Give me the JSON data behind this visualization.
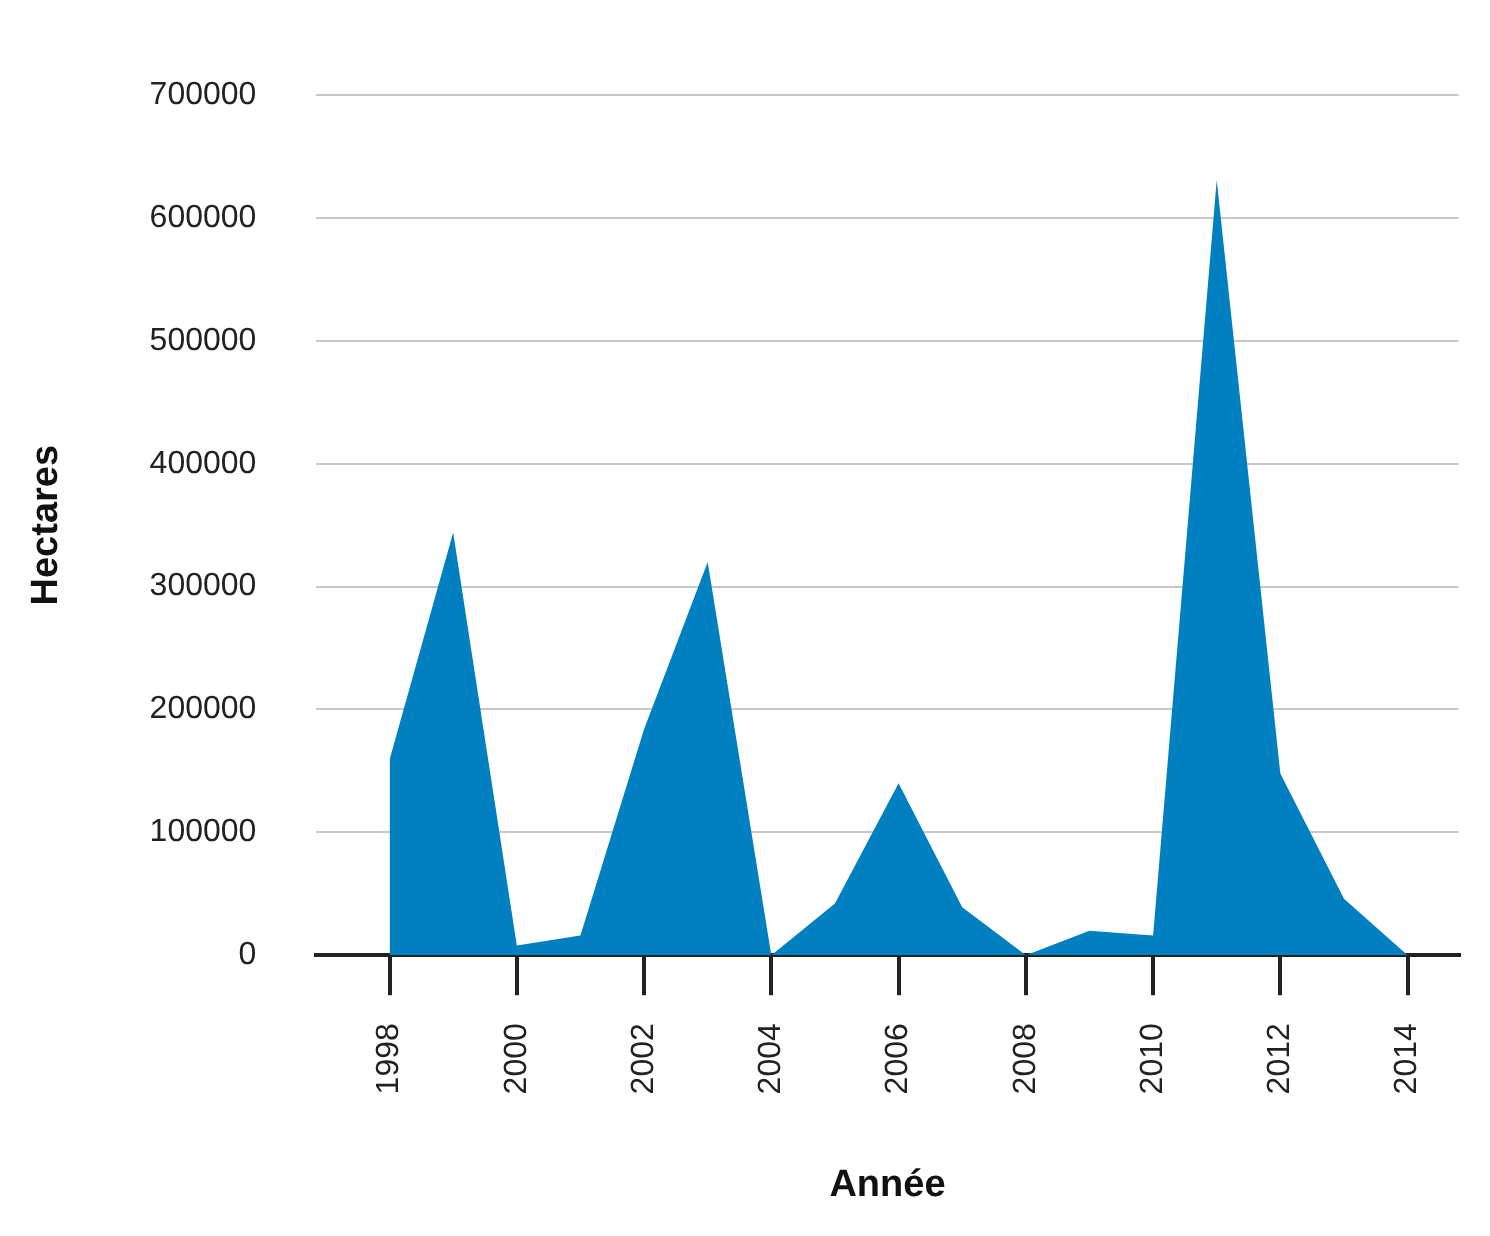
{
  "chart_data": {
    "type": "area",
    "xlabel": "Année",
    "ylabel": "Hectares",
    "x": [
      1998,
      1999,
      2000,
      2001,
      2002,
      2003,
      2004,
      2005,
      2006,
      2007,
      2008,
      2009,
      2010,
      2011,
      2012,
      2013,
      2014
    ],
    "series": [
      {
        "color": "#0080c0",
        "values": [
          159000,
          344000,
          8000,
          16000,
          184000,
          320000,
          0,
          42000,
          140000,
          39000,
          0,
          20000,
          16000,
          631000,
          148000,
          46000,
          0
        ]
      }
    ],
    "xlim": [
      1996.85,
      2014.8
    ],
    "xticks": [
      1998,
      2000,
      2002,
      2004,
      2006,
      2008,
      2010,
      2012,
      2014
    ],
    "ylim": [
      0,
      700000
    ],
    "yticks": [
      0,
      100000,
      200000,
      300000,
      400000,
      500000,
      600000,
      700000
    ],
    "grid": "y",
    "legend": false
  }
}
